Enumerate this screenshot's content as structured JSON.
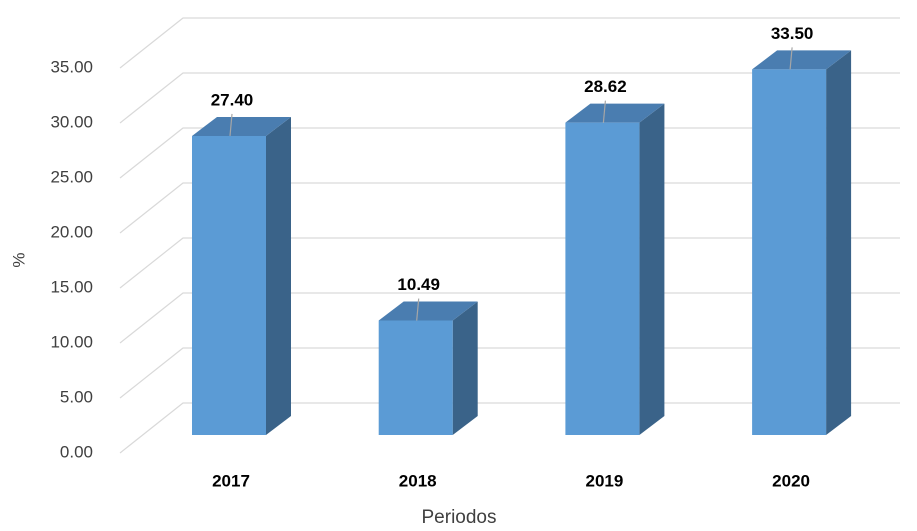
{
  "chart_data": {
    "type": "bar3d",
    "x_label": "Periodos",
    "y_label": "%",
    "categories": [
      "2017",
      "2018",
      "2019",
      "2020"
    ],
    "values": [
      27.4,
      10.49,
      28.62,
      33.5
    ],
    "value_labels": [
      "27.40",
      "10.49",
      "28.62",
      "33.50"
    ],
    "color": "#5b9bd5",
    "ylim": [
      0,
      35
    ],
    "yticks": [
      {
        "value": 0,
        "label": "0.00"
      },
      {
        "value": 5,
        "label": "5.00"
      },
      {
        "value": 10,
        "label": "10.00"
      },
      {
        "value": 15,
        "label": "15.00"
      },
      {
        "value": 20,
        "label": "20.00"
      },
      {
        "value": 25,
        "label": "25.00"
      },
      {
        "value": 30,
        "label": "30.00"
      },
      {
        "value": 35,
        "label": "35.00"
      }
    ],
    "grid": true
  }
}
